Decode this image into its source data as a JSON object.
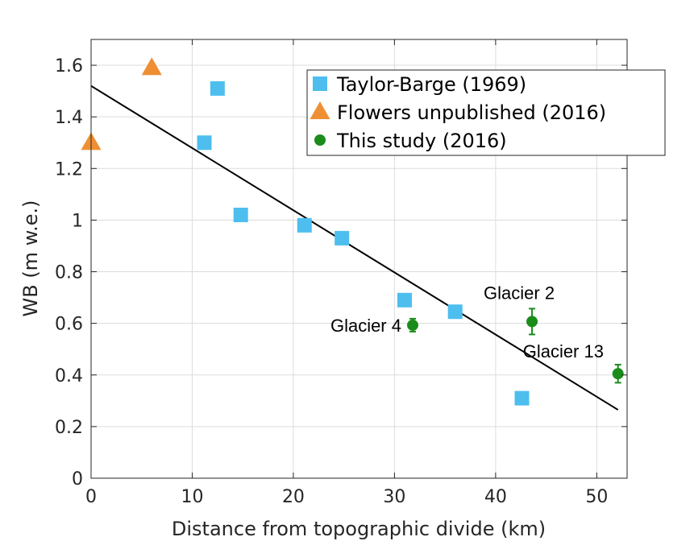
{
  "chart_data": {
    "type": "scatter",
    "title": "",
    "xlabel": "Distance from topographic divide (km)",
    "ylabel": "WB (m w.e.)",
    "xlim": [
      0,
      53
    ],
    "ylim": [
      0,
      1.7
    ],
    "xticks": [
      0,
      10,
      20,
      30,
      40,
      50
    ],
    "yticks": [
      0,
      0.2,
      0.4,
      0.6,
      0.8,
      1,
      1.2,
      1.4,
      1.6
    ],
    "xtick_labels": [
      "0",
      "10",
      "20",
      "30",
      "40",
      "50"
    ],
    "ytick_labels": [
      "0",
      "0.2",
      "0.4",
      "0.6",
      "0.8",
      "1",
      "1.2",
      "1.4",
      "1.6"
    ],
    "grid": true,
    "legend_position": "top-right",
    "series": [
      {
        "name": "Taylor-Barge (1969)",
        "marker": "square",
        "color": "#4DBEEE",
        "x": [
          11.2,
          12.5,
          14.8,
          21.1,
          24.8,
          31.0,
          36.0,
          42.6
        ],
        "y": [
          1.3,
          1.51,
          1.02,
          0.98,
          0.93,
          0.69,
          0.645,
          0.31
        ]
      },
      {
        "name": "Flowers unpublished (2016)",
        "marker": "triangle",
        "color": "#EE8F33",
        "x": [
          0.0,
          6.0
        ],
        "y": [
          1.3,
          1.59
        ]
      },
      {
        "name": "This study (2016)",
        "marker": "circle",
        "color": "#1A8C1A",
        "x": [
          31.8,
          43.6,
          52.1
        ],
        "y": [
          0.593,
          0.607,
          0.405
        ],
        "err": [
          0.025,
          0.05,
          0.035
        ]
      }
    ],
    "fit_line": {
      "color": "#000000",
      "x": [
        0,
        52.1
      ],
      "y": [
        1.52,
        0.265
      ]
    },
    "annotations": [
      {
        "text": "Glacier 4",
        "series": 2,
        "point": 0
      },
      {
        "text": "Glacier 2",
        "series": 2,
        "point": 1
      },
      {
        "text": "Glacier 13",
        "series": 2,
        "point": 2
      }
    ]
  }
}
